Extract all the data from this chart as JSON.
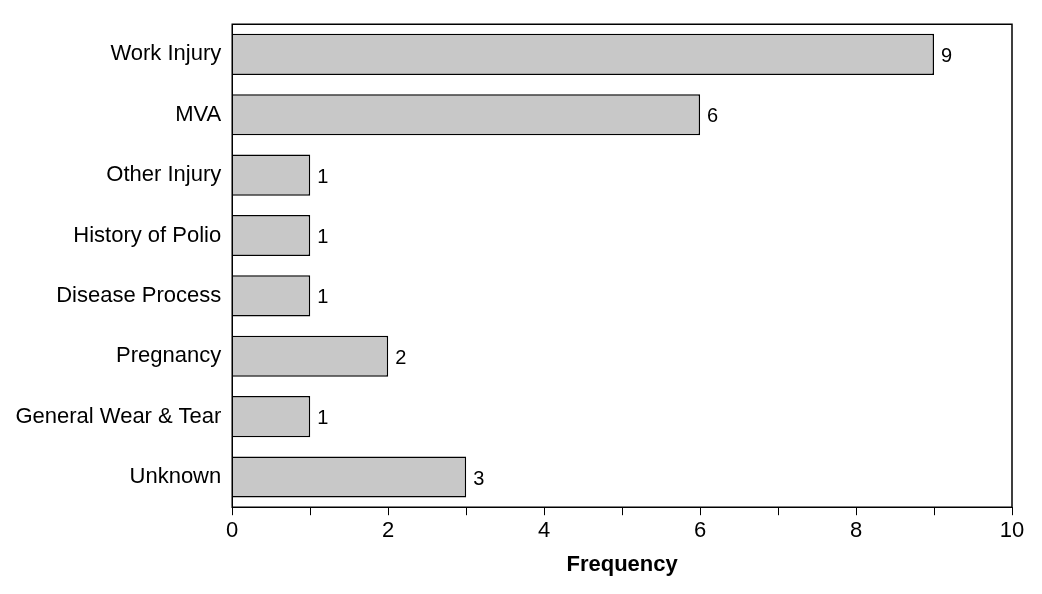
{
  "chart_data": {
    "type": "bar",
    "orientation": "horizontal",
    "xlabel": "Frequency",
    "categories": [
      "Work Injury",
      "MVA",
      "Other Injury",
      "History of Polio",
      "Disease Process",
      "Pregnancy",
      "General Wear & Tear",
      "Unknown"
    ],
    "values": [
      9,
      6,
      1,
      1,
      1,
      2,
      1,
      3
    ],
    "color": "#c8c8c8",
    "xlim": [
      0,
      10
    ],
    "xticks": [
      0,
      {
        "value": 1,
        "label": null
      },
      2,
      {
        "value": 3,
        "label": null
      },
      4,
      {
        "value": 5,
        "label": null
      },
      6,
      {
        "value": 7,
        "label": null
      },
      8,
      {
        "value": 9,
        "label": null
      },
      10
    ],
    "data_labels": true,
    "grid": false,
    "legend": false
  }
}
